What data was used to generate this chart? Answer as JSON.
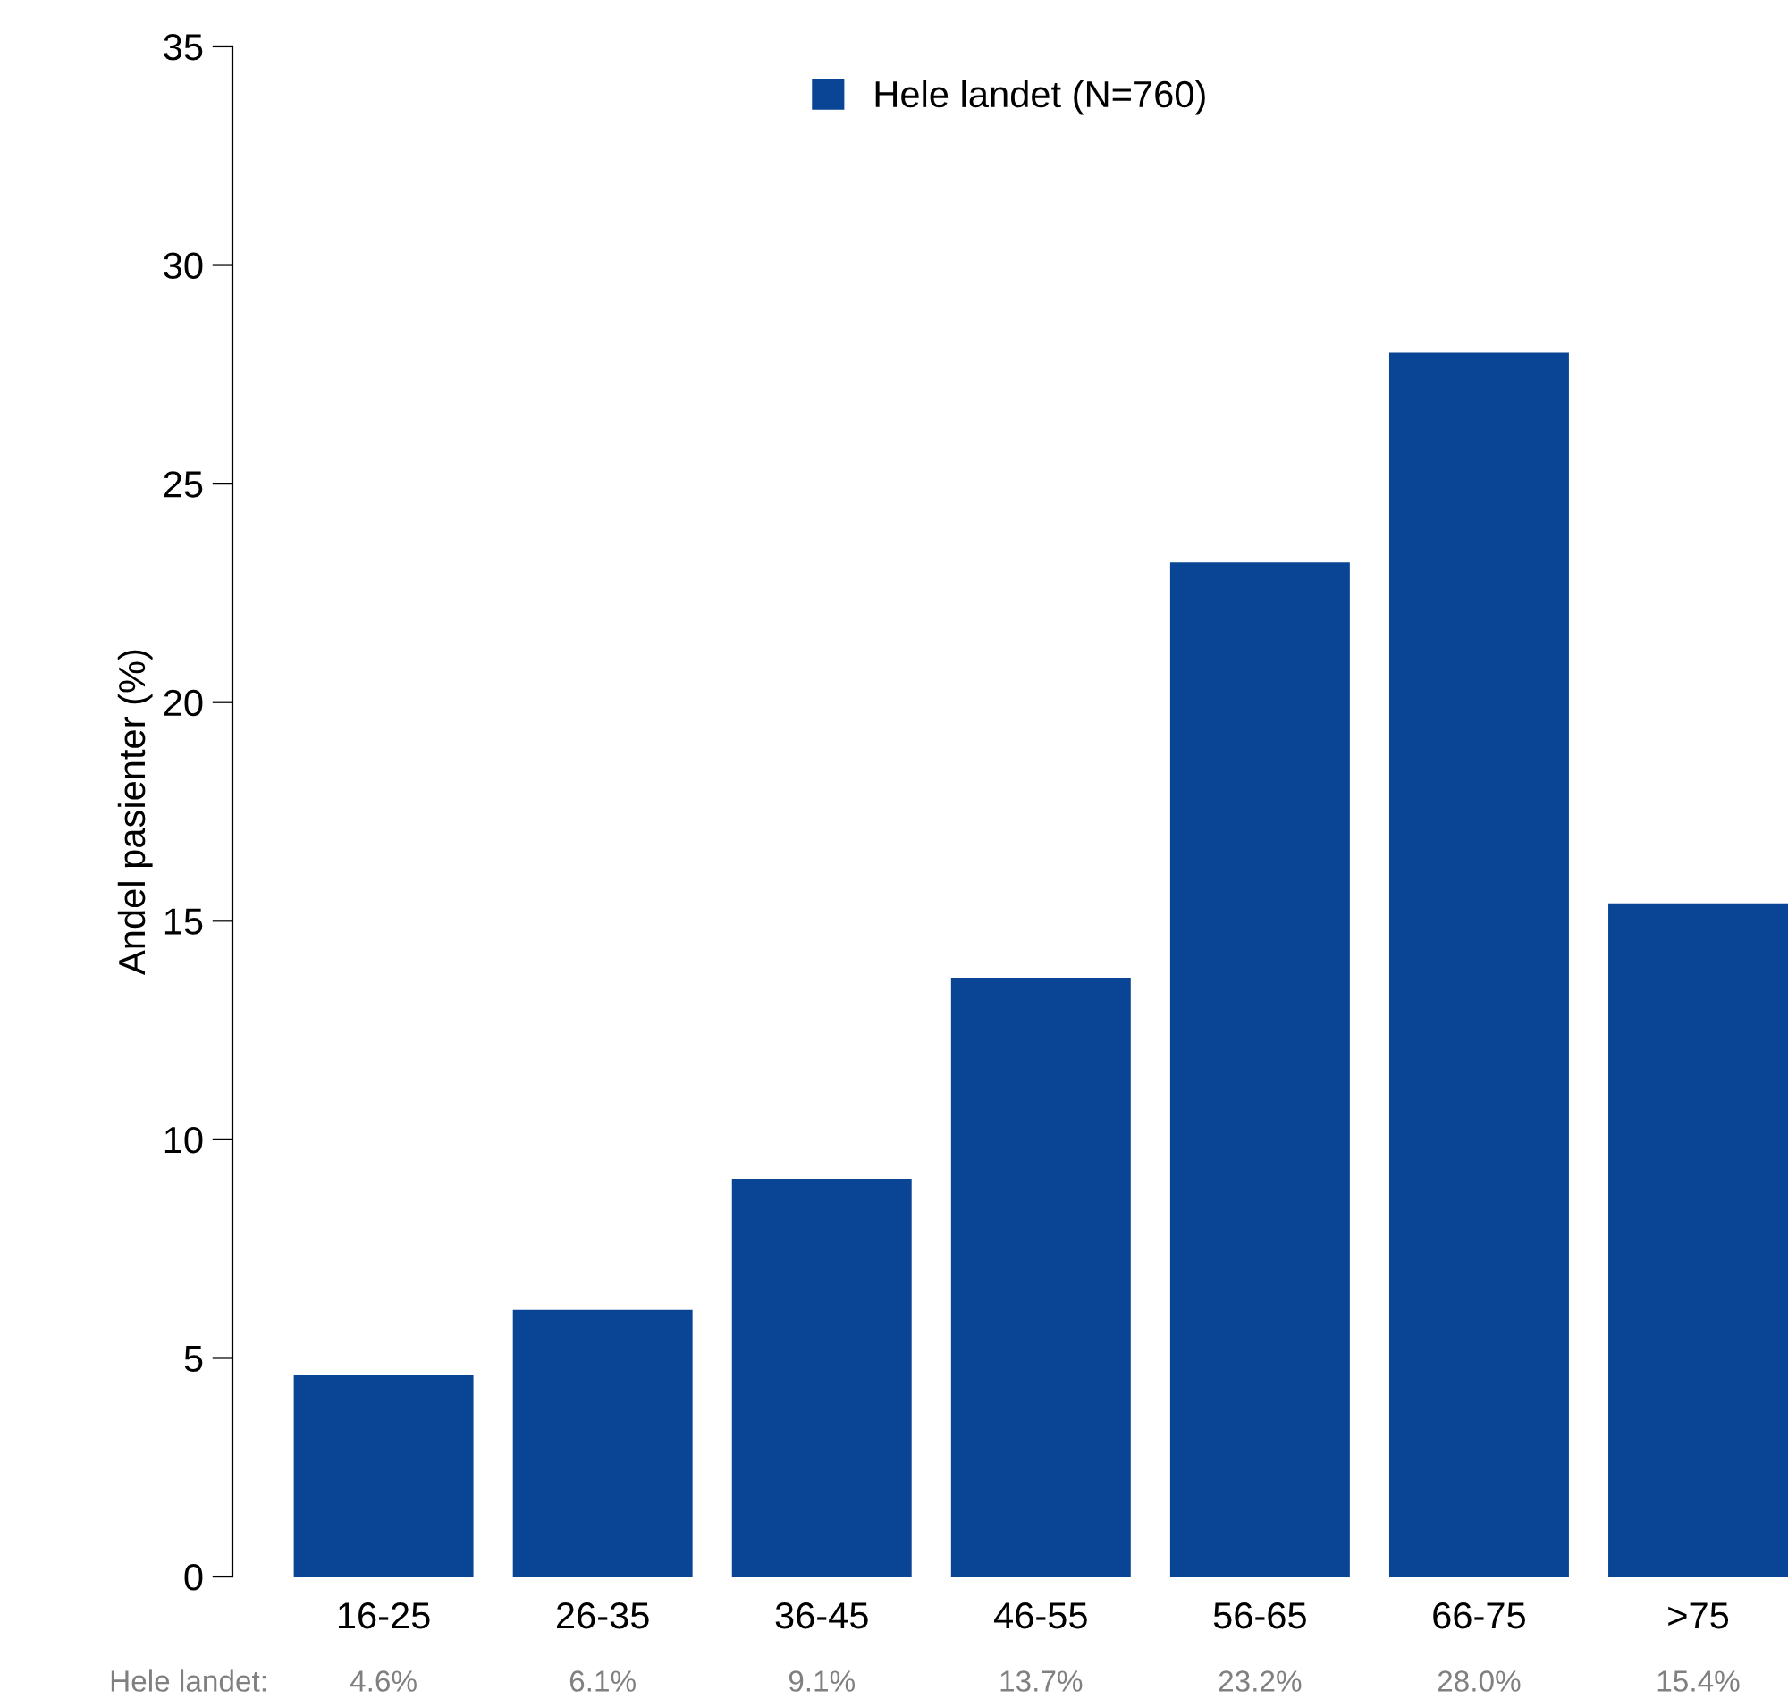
{
  "chart_data": {
    "type": "bar",
    "ylabel": "Andel pasienter (%)",
    "categories": [
      "16-25",
      "26-35",
      "36-45",
      "46-55",
      "56-65",
      "66-75",
      ">75"
    ],
    "series": [
      {
        "name": "Hele landet (N=760)",
        "color": "#0a4595",
        "values": [
          4.6,
          6.1,
          9.1,
          13.7,
          23.2,
          28.0,
          15.4
        ],
        "value_labels": [
          "4.6%",
          "6.1%",
          "9.1%",
          "13.7%",
          "23.2%",
          "28.0%",
          "15.4%"
        ]
      }
    ],
    "annotations": [
      "Hele landet:"
    ],
    "ylim": [
      0,
      35
    ],
    "yticks": [
      0,
      5,
      10,
      15,
      20,
      25,
      30,
      35
    ],
    "grid": false,
    "legend": "top"
  }
}
